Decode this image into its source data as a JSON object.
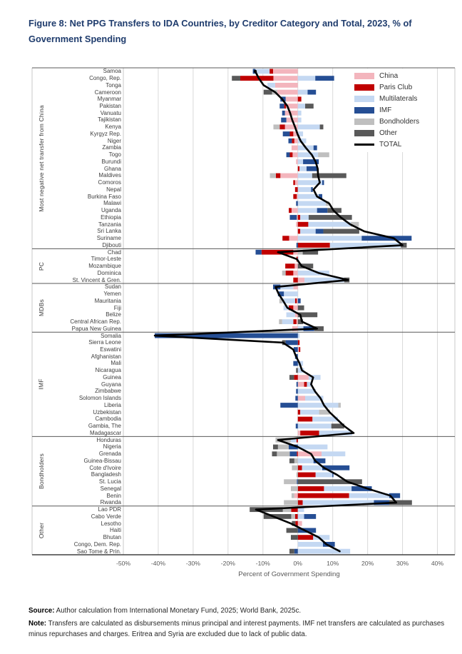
{
  "title_line1": "Figure 8:  Net PPG Transfers to IDA Countries, by Creditor Category and Total, 2023, % of",
  "title_line2": "Government Spending",
  "footer": {
    "source_label": "Source:",
    "source_text": " Author calculation from International Monetary Fund, 2025; World Bank, 2025c.",
    "note_label": "Note:",
    "note_text": " Transfers are calculated as disbursements minus principal and interest payments. IMF net transfers are calculated as purchases minus repurchases and charges. Eritrea and Syria are excluded due to lack of public data."
  },
  "legend": [
    {
      "label": "China",
      "series": "china"
    },
    {
      "label": "Paris Club",
      "series": "paris_club"
    },
    {
      "label": "Multilaterals",
      "series": "multilaterals"
    },
    {
      "label": "IMF",
      "series": "imf"
    },
    {
      "label": "Bondholders",
      "series": "bondholders"
    },
    {
      "label": "Other",
      "series": "other"
    },
    {
      "label": "TOTAL",
      "series": "total"
    }
  ],
  "chart_data": {
    "type": "bar",
    "orientation": "horizontal",
    "stacked": true,
    "title": "Net PPG Transfers to IDA Countries, by Creditor Category and Total, 2023, % of Government Spending",
    "xlabel": "Percent of Government Spending",
    "xlim": [
      -50,
      45
    ],
    "xticks": [
      -50,
      -40,
      -30,
      -20,
      -10,
      0,
      10,
      20,
      30,
      40
    ],
    "xtick_labels": [
      "-50%",
      "-40%",
      "-30%",
      "-20%",
      "-10%",
      "0%",
      "10%",
      "20%",
      "30%",
      "40%"
    ],
    "grid": true,
    "legend_position": "top-right-inside",
    "series_order": [
      "china",
      "paris_club",
      "multilaterals",
      "imf",
      "bondholders",
      "other"
    ],
    "series_colors": {
      "china": "#F3B5BD",
      "paris_club": "#C00000",
      "multilaterals": "#C4D8F2",
      "imf": "#254E94",
      "bondholders": "#BFBFBF",
      "other": "#595959"
    },
    "total_color": "#000000",
    "groups": [
      {
        "label": "Most negative net transfer from China",
        "rows": [
          {
            "country": "Samoa",
            "china": -7.1,
            "paris_club": -1.0,
            "multilaterals": -4.1,
            "imf": -0.7,
            "total": -12.2
          },
          {
            "country": "Congo, Rep.",
            "china": -7.0,
            "paris_club": -9.5,
            "other": -2.4,
            "multilaterals": 5.0,
            "imf": 5.4,
            "total": -11.2
          },
          {
            "country": "Tonga",
            "china": -6.5,
            "multilaterals": -2.2,
            "total": -9.8
          },
          {
            "country": "Cameroon",
            "china": -5.9,
            "bondholders": -1.5,
            "other": -2.4,
            "multilaterals": 2.8,
            "imf": 2.4,
            "total": -6.5
          },
          {
            "country": "Myanmar",
            "china": -3.5,
            "imf": -1.5,
            "paris_club": 1.0,
            "total": -4.5
          },
          {
            "country": "Pakistan",
            "china": -3.4,
            "paris_club": -0.5,
            "imf": -1.3,
            "multilaterals": 2.1,
            "other": 2.4,
            "total": -3.0
          },
          {
            "country": "Vanuatu",
            "china": -3.7,
            "imf": -0.8,
            "multilaterals": 1.0,
            "total": -2.2
          },
          {
            "country": "Tajikistan",
            "china": -3.3,
            "imf": -1.5,
            "multilaterals": 1.0,
            "total": -1.6
          },
          {
            "country": "Kenya",
            "china": -3.7,
            "paris_club": -1.5,
            "bondholders": -1.8,
            "multilaterals": 6.3,
            "other": 1.0,
            "total": -0.8
          },
          {
            "country": "Kyrgyz Rep.",
            "china": -1.3,
            "paris_club": -1.0,
            "imf": -2.0,
            "multilaterals": 1.5,
            "total": -0.1
          },
          {
            "country": "Niger",
            "china": -1.0,
            "paris_club": -0.7,
            "imf": -1.0,
            "multilaterals": 2.4,
            "total": 0.8
          },
          {
            "country": "Zambia",
            "china": -1.8,
            "multilaterals": 4.5,
            "imf": 1.0,
            "total": 2.3
          },
          {
            "country": "Togo",
            "china": -1.5,
            "paris_club": -0.8,
            "imf": -1.0,
            "multilaterals": 5.8,
            "bondholders": 3.2,
            "total": 4.0
          },
          {
            "country": "Burundi",
            "china": -0.5,
            "multilaterals": 1.5,
            "imf": 4.5,
            "total": 5.1
          },
          {
            "country": "Ghana",
            "paris_club": 0.5,
            "multilaterals": 2.0,
            "imf": 3.0,
            "total": 5.7
          },
          {
            "country": "Maldives",
            "china": -5.0,
            "paris_club": -1.3,
            "bondholders": -1.7,
            "multilaterals": 4.1,
            "other": 9.8,
            "total": 5.8
          },
          {
            "country": "Comoros",
            "china": -0.8,
            "paris_club": -0.5,
            "multilaterals": 7.0,
            "imf": 0.5,
            "total": 6.3
          },
          {
            "country": "Nepal",
            "paris_club": -0.8,
            "multilaterals": 3.8,
            "imf": 0.5,
            "total": 4.5
          },
          {
            "country": "Burkina Faso",
            "china": -0.3,
            "paris_club": -1.0,
            "multilaterals": 6.0,
            "imf": 1.0,
            "total": 5.5
          },
          {
            "country": "Malawi",
            "imf": -0.5,
            "multilaterals": 8.0,
            "bondholders": 1.0,
            "total": 9.0
          },
          {
            "country": "Uganda",
            "china": -1.8,
            "paris_club": -0.8,
            "multilaterals": 5.5,
            "imf": 3.0,
            "other": 4.0,
            "total": 10.2
          },
          {
            "country": "Ethiopia",
            "china": -0.3,
            "imf": -2.0,
            "paris_club": 0.7,
            "multilaterals": 2.4,
            "other": 12.4,
            "total": 12.3
          },
          {
            "country": "Tanzania",
            "china": -0.5,
            "paris_club": 3.0,
            "multilaterals": 12.2,
            "bondholders": 2.3,
            "total": 15.0
          },
          {
            "country": "Sri Lanka",
            "paris_club": 0.7,
            "multilaterals": 4.4,
            "imf": 2.2,
            "other": 10.3,
            "total": 19.0
          },
          {
            "country": "Suriname",
            "china": -2.5,
            "paris_club": -1.9,
            "multilaterals": 18.3,
            "imf": 14.3,
            "total": 27.5
          },
          {
            "country": "Djibouti",
            "imf": -0.4,
            "paris_club": 9.2,
            "multilaterals": 20.3,
            "other": 1.7,
            "total": 30.0
          }
        ]
      },
      {
        "label": "PC",
        "rows": [
          {
            "country": "Chad",
            "china": -1.3,
            "paris_club": -9.1,
            "imf": -1.7,
            "bondholders": 1.4,
            "other": 4.4,
            "total": -5.7
          },
          {
            "country": "Timor-Leste",
            "paris_club": -0.4,
            "multilaterals": 0.3,
            "total": -0.3
          },
          {
            "country": "Mozambique",
            "china": -0.9,
            "paris_club": -2.7,
            "other": 4.4,
            "total": 1.1
          },
          {
            "country": "Dominica",
            "china": -1.3,
            "paris_club": -2.2,
            "bondholders": -1.0,
            "multilaterals": 9.0,
            "total": 6.0
          },
          {
            "country": "St. Vincent & Gren.",
            "paris_club": -1.3,
            "china": 1.9,
            "multilaterals": 11.4,
            "other": 1.5,
            "total": 14.4
          }
        ]
      },
      {
        "label": "MDBs",
        "rows": [
          {
            "country": "Sudan",
            "china": -1.3,
            "multilaterals": -3.7,
            "imf": -2.1,
            "total": -6.4
          },
          {
            "country": "Yemen",
            "multilaterals": -4.0,
            "imf": -1.7,
            "total": -5.5
          },
          {
            "country": "Mauritania",
            "china": -0.3,
            "paris_club": -0.5,
            "multilaterals": -3.7,
            "bondholders": -0.8,
            "imf": 0.8,
            "total": -4.2
          },
          {
            "country": "Fiji",
            "china": -1.3,
            "paris_club": -1.3,
            "multilaterals": -1.5,
            "other": 1.8,
            "total": -3.0
          },
          {
            "country": "Belize",
            "china": -0.8,
            "multilaterals": -2.5,
            "other": 5.6,
            "total": 0.7
          },
          {
            "country": "Central African Rep.",
            "china": -0.4,
            "paris_club": -0.9,
            "multilaterals": -3.2,
            "bondholders": -0.9,
            "other": 1.5,
            "total": 1.2
          },
          {
            "country": "Papua New Guinea",
            "china": -1.6,
            "multilaterals": 1.6,
            "imf": 3.1,
            "other": 2.7,
            "total": 5.5
          }
        ]
      },
      {
        "label": "IMF",
        "rows": [
          {
            "country": "Somalia",
            "imf": -41.0,
            "multilaterals": 0.5,
            "total": -41.0
          },
          {
            "country": "Sierra Leone",
            "imf": -3.5,
            "other": -1.0,
            "paris_club": 0.5,
            "total": -4.3
          },
          {
            "country": "Eswatini",
            "imf": -1.2,
            "paris_club": 0.4,
            "china": 0.3,
            "total": -1.3
          },
          {
            "country": "Afghanistan",
            "imf": -0.8,
            "total": -0.5
          },
          {
            "country": "Mali",
            "imf": -1.3,
            "multilaterals": 1.5,
            "total": 0.5
          },
          {
            "country": "Nicaragua",
            "other": -0.5,
            "multilaterals": 1.8,
            "total": 1.2
          },
          {
            "country": "Guinea",
            "paris_club": -1.1,
            "other": -1.3,
            "china": 3.1,
            "multilaterals": 3.4,
            "total": 4.4
          },
          {
            "country": "Guyana",
            "imf": -0.4,
            "china": 1.8,
            "paris_club": 0.8,
            "multilaterals": 1.2,
            "total": 3.8
          },
          {
            "country": "Zimbabwe",
            "imf": -0.5,
            "multilaterals": 5.2,
            "total": 4.9
          },
          {
            "country": "Solomon Islands",
            "imf": -0.7,
            "china": 2.1,
            "multilaterals": 5.2,
            "total": 6.5
          },
          {
            "country": "Liberia",
            "imf": -5.0,
            "multilaterals": 11.6,
            "bondholders": 0.7,
            "total": 7.5
          },
          {
            "country": "Uzbekistan",
            "paris_club": 0.7,
            "multilaterals": 5.4,
            "bondholders": 3.1,
            "total": 9.1
          },
          {
            "country": "Cambodia",
            "paris_club": 4.2,
            "multilaterals": 7.3,
            "total": 11.2
          },
          {
            "country": "Gambia, The",
            "imf": -0.6,
            "multilaterals": 9.6,
            "other": 3.7,
            "total": 13.3
          },
          {
            "country": "Madagascar",
            "china": 0.7,
            "paris_club": 5.4,
            "multilaterals": 9.5,
            "total": 16.0
          }
        ]
      },
      {
        "label": "Bondholders",
        "rows": [
          {
            "country": "Honduras",
            "paris_club": -0.4,
            "multilaterals": -1.6,
            "bondholders": -4.4,
            "total": -5.7
          },
          {
            "country": "Nigeria",
            "imf": -2.6,
            "bondholders": -3.1,
            "other": -1.4,
            "multilaterals": 8.5,
            "total": 0.0
          },
          {
            "country": "Grenada",
            "paris_club": -0.3,
            "imf": -2.0,
            "bondholders": -3.7,
            "other": -1.4,
            "china": 6.8,
            "multilaterals": 6.8,
            "total": 3.8
          },
          {
            "country": "Guinea-Bissau",
            "bondholders": -1.0,
            "other": -1.4,
            "multilaterals": 4.5,
            "imf": 3.4,
            "total": 5.0
          },
          {
            "country": "Cote d'Ivoire",
            "bondholders": -1.7,
            "paris_club": 1.2,
            "multilaterals": 5.8,
            "imf": 7.8,
            "total": 7.5
          },
          {
            "country": "Bangladesh",
            "bondholders": -0.4,
            "paris_club": 5.1,
            "multilaterals": 4.8,
            "imf": 0.3,
            "total": 11.2
          },
          {
            "country": "St. Lucia",
            "bondholders": -3.7,
            "imf": -0.3,
            "other": 18.4,
            "total": 14.2
          },
          {
            "country": "Senegal",
            "bondholders": -2.0,
            "paris_club": 7.5,
            "multilaterals": 7.9,
            "imf": 5.8,
            "total": 20.0
          },
          {
            "country": "Benin",
            "china": -1.0,
            "bondholders": -0.8,
            "paris_club": 14.7,
            "multilaterals": 11.5,
            "imf": 3.1,
            "total": 26.5
          },
          {
            "country": "Rwanda",
            "bondholders": -4.0,
            "paris_club": 1.4,
            "multilaterals": 20.4,
            "imf": 4.4,
            "other": 6.5,
            "total": 28.2
          }
        ]
      },
      {
        "label": "Other",
        "rows": [
          {
            "country": "Lao PDR",
            "paris_club": -1.9,
            "bondholders": -2.4,
            "other": -9.5,
            "multilaterals": 1.8,
            "total": -12.0
          },
          {
            "country": "Cabo Verde",
            "paris_club": -0.8,
            "bondholders": -1.1,
            "other": -7.9,
            "multilaterals": 1.8,
            "imf": 3.4,
            "total": -7.0
          },
          {
            "country": "Lesotho",
            "paris_club": -0.7,
            "other": -1.0,
            "china": 1.2,
            "total": -2.0
          },
          {
            "country": "Haiti",
            "other": -3.3,
            "imf": 5.2,
            "total": 2.0
          },
          {
            "country": "Bhutan",
            "other": -2.0,
            "paris_club": 4.4,
            "multilaterals": 4.7,
            "total": 6.0
          },
          {
            "country": "Congo, Dem. Rep.",
            "multilaterals": 7.2,
            "imf": 3.4,
            "total": 8.2
          },
          {
            "country": "Sao Tome & Prin.",
            "other": -1.4,
            "imf": -1.0,
            "multilaterals": 15.0,
            "total": 12.0
          }
        ]
      }
    ]
  }
}
